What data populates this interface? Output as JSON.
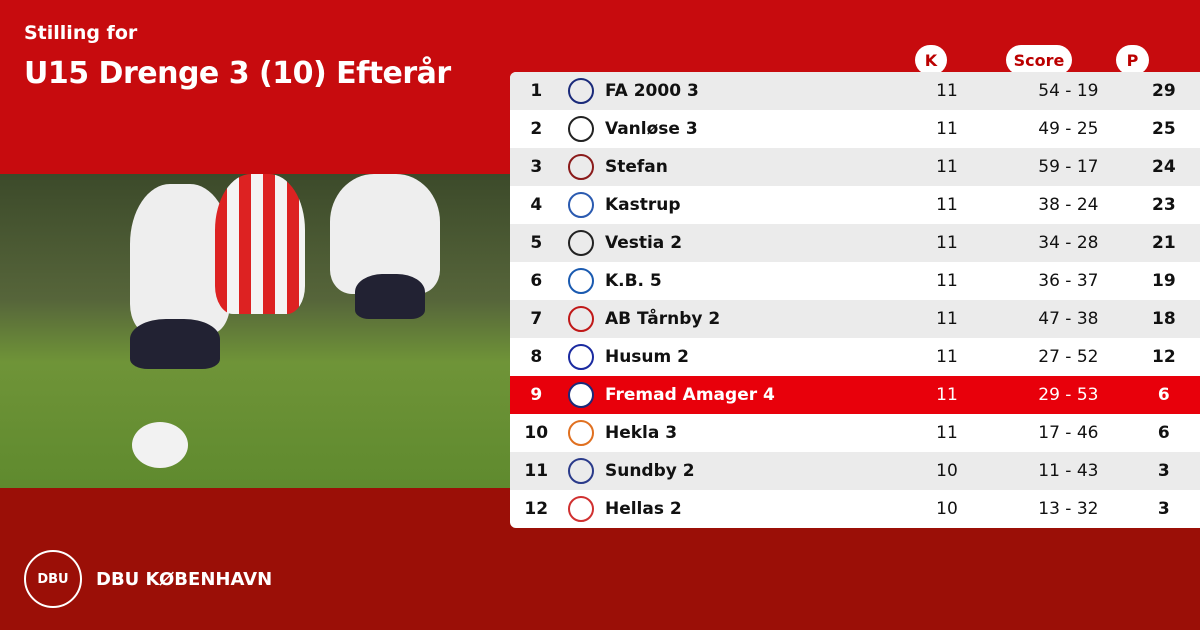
{
  "header": {
    "subtitle": "Stilling for",
    "title": "U15 Drenge 3 (10) Efterår"
  },
  "table": {
    "columns": {
      "matches": "K",
      "score": "Score",
      "points": "P"
    },
    "highlight_color": "#e8000b",
    "rows": [
      {
        "pos": "1",
        "team": "FA 2000 3",
        "k": "11",
        "score": "54 - 19",
        "p": "29",
        "logo_color": "#1a2a7a"
      },
      {
        "pos": "2",
        "team": "Vanløse 3",
        "k": "11",
        "score": "49 - 25",
        "p": "25",
        "logo_color": "#222222"
      },
      {
        "pos": "3",
        "team": "Stefan",
        "k": "11",
        "score": "59 - 17",
        "p": "24",
        "logo_color": "#8a1a1a"
      },
      {
        "pos": "4",
        "team": "Kastrup",
        "k": "11",
        "score": "38 - 24",
        "p": "23",
        "logo_color": "#2a5ab0"
      },
      {
        "pos": "5",
        "team": "Vestia 2",
        "k": "11",
        "score": "34 - 28",
        "p": "21",
        "logo_color": "#222222"
      },
      {
        "pos": "6",
        "team": "K.B. 5",
        "k": "11",
        "score": "36 - 37",
        "p": "19",
        "logo_color": "#1a5ab0"
      },
      {
        "pos": "7",
        "team": "AB Tårnby 2",
        "k": "11",
        "score": "47 - 38",
        "p": "18",
        "logo_color": "#c01818"
      },
      {
        "pos": "8",
        "team": "Husum 2",
        "k": "11",
        "score": "27 - 52",
        "p": "12",
        "logo_color": "#1a2aa0"
      },
      {
        "pos": "9",
        "team": "Fremad Amager 4",
        "k": "11",
        "score": "29 - 53",
        "p": "6",
        "logo_color": "#1a2a7a",
        "highlight": true
      },
      {
        "pos": "10",
        "team": "Hekla 3",
        "k": "11",
        "score": "17 - 46",
        "p": "6",
        "logo_color": "#e07020"
      },
      {
        "pos": "11",
        "team": "Sundby 2",
        "k": "10",
        "score": "11 - 43",
        "p": "3",
        "logo_color": "#2a3a8a"
      },
      {
        "pos": "12",
        "team": "Hellas 2",
        "k": "10",
        "score": "13 - 32",
        "p": "3",
        "logo_color": "#d03030"
      }
    ]
  },
  "footer": {
    "org": "DBU KØBENHAVN",
    "seal_text": "DBU"
  }
}
